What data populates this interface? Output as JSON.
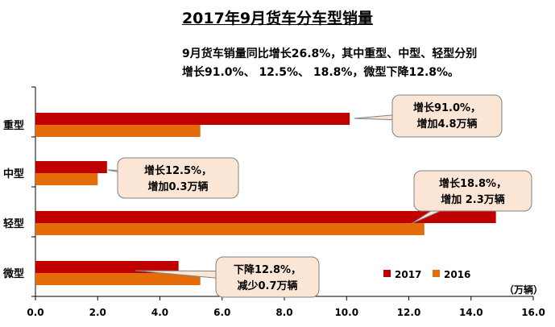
{
  "title": "2017年9月货车分车型销量",
  "subtitle_lines": [
    "9月货车销量同比增长26.8%，其中重型、中型、轻型分别",
    "增长91.0%、 12.5%、 18.8%，微型下降12.8%。"
  ],
  "unit_label": "（万辆）",
  "colors": {
    "s2017": "#c00000",
    "s2016": "#e46c0a",
    "callout_fill": "#fbe6d5",
    "callout_stroke": "#808080"
  },
  "chart_data": {
    "type": "bar",
    "orientation": "horizontal",
    "categories": [
      "重型",
      "中型",
      "轻型",
      "微型"
    ],
    "series": [
      {
        "name": "2017",
        "values": [
          10.1,
          2.3,
          14.8,
          4.6
        ]
      },
      {
        "name": "2016",
        "values": [
          5.3,
          2.0,
          12.5,
          5.3
        ]
      }
    ],
    "xlim": [
      0,
      16
    ],
    "x_ticks": [
      "0.0",
      "2.0",
      "4.0",
      "6.0",
      "8.0",
      "10.0",
      "12.0",
      "14.0",
      "16.0"
    ],
    "legend": [
      "2017",
      "2016"
    ],
    "legend_position": "bottom-right",
    "annotations": [
      {
        "category": "重型",
        "lines": [
          "增长91.0%，",
          "增加4.8万辆"
        ]
      },
      {
        "category": "中型",
        "lines": [
          "增长12.5%，",
          "增加0.3万辆"
        ]
      },
      {
        "category": "轻型",
        "lines": [
          "增长18.8%，",
          "增加 2.3万辆"
        ]
      },
      {
        "category": "微型",
        "lines": [
          "下降12.8%，",
          "减少0.7万辆"
        ]
      }
    ]
  }
}
